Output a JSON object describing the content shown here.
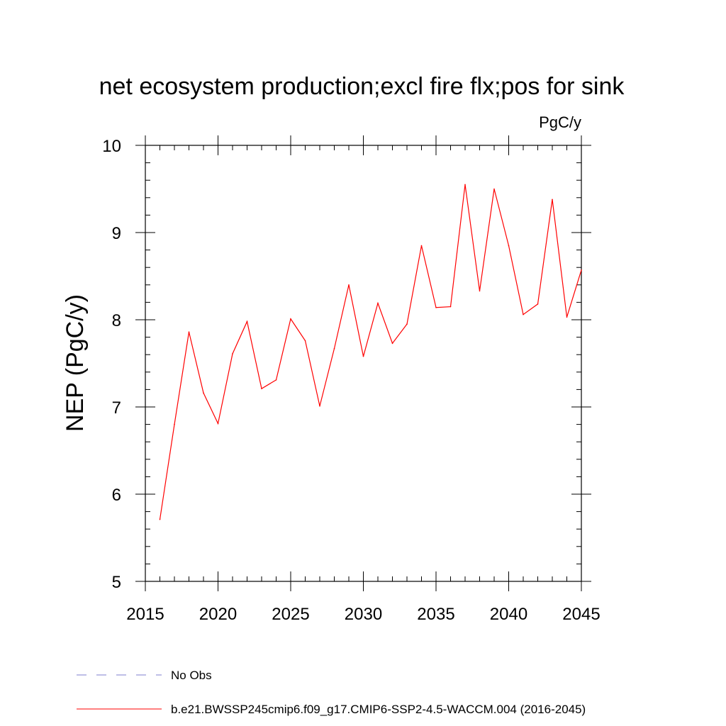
{
  "chart_data": {
    "type": "line",
    "title": "net ecosystem production;excl fire flx;pos for sink",
    "units_label": "PgC/y",
    "xlabel": "",
    "ylabel": "NEP  (PgC/y)",
    "xlim": [
      2015,
      2045
    ],
    "ylim": [
      5,
      10
    ],
    "x_ticks": [
      2015,
      2020,
      2025,
      2030,
      2035,
      2040,
      2045
    ],
    "y_ticks": [
      5,
      6,
      7,
      8,
      9,
      10
    ],
    "x_minor_step": 1,
    "y_minor_step": 0.2,
    "grid": false,
    "legend_position": "bottom",
    "series": [
      {
        "name": "b.e21.BWSSP245cmip6.f09_g17.CMIP6-SSP2-4.5-WACCM.004 (2016-2045)",
        "color": "#ff0000",
        "style": "solid",
        "x": [
          2016,
          2017,
          2018,
          2019,
          2020,
          2021,
          2022,
          2023,
          2024,
          2025,
          2026,
          2027,
          2028,
          2029,
          2030,
          2031,
          2032,
          2033,
          2034,
          2035,
          2036,
          2037,
          2038,
          2039,
          2040,
          2041,
          2042,
          2043,
          2044,
          2045
        ],
        "y": [
          5.71,
          6.8,
          7.86,
          7.16,
          6.81,
          7.61,
          7.98,
          7.21,
          7.31,
          8.01,
          7.76,
          7.01,
          7.67,
          8.4,
          7.58,
          8.19,
          7.73,
          7.95,
          8.85,
          8.14,
          8.15,
          9.55,
          8.33,
          9.5,
          8.85,
          8.06,
          8.18,
          9.38,
          8.03,
          8.57
        ]
      }
    ],
    "legend": [
      {
        "label": "No Obs",
        "color": "#7f7fcf",
        "style": "dashed"
      },
      {
        "label": "b.e21.BWSSP245cmip6.f09_g17.CMIP6-SSP2-4.5-WACCM.004 (2016-2045)",
        "color": "#ff0000",
        "style": "solid"
      }
    ]
  }
}
